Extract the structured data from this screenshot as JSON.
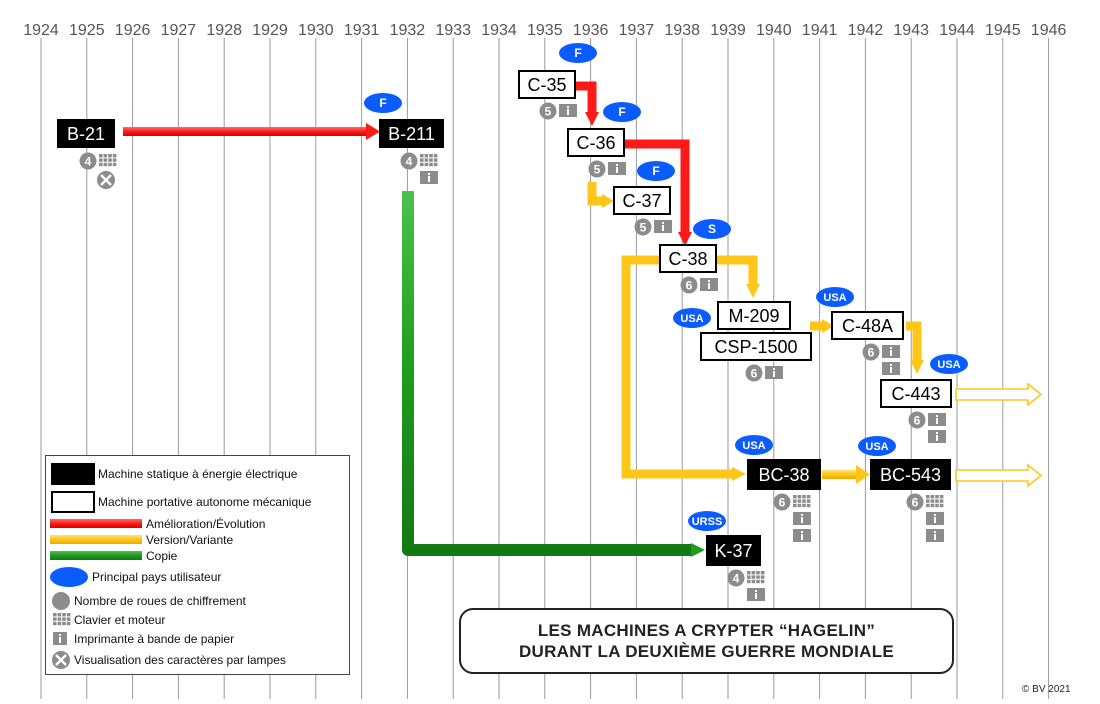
{
  "years": [
    "1924",
    "1925",
    "1926",
    "1927",
    "1928",
    "1929",
    "1930",
    "1931",
    "1932",
    "1933",
    "1934",
    "1935",
    "1936",
    "1937",
    "1938",
    "1939",
    "1940",
    "1941",
    "1942",
    "1943",
    "1944",
    "1945",
    "1946"
  ],
  "machines": [
    {
      "id": "b21",
      "label": "B-21",
      "style": "filled",
      "count": "4",
      "icons": [
        "keyboard",
        "lamp"
      ]
    },
    {
      "id": "b211",
      "label": "B-211",
      "style": "filled",
      "country": "F",
      "count": "4",
      "icons": [
        "keyboard",
        "printer"
      ]
    },
    {
      "id": "c35",
      "label": "C-35",
      "style": "outline",
      "country": "F",
      "count": "5",
      "icons": [
        "printer"
      ]
    },
    {
      "id": "c36",
      "label": "C-36",
      "style": "outline",
      "country": "F",
      "count": "5",
      "icons": [
        "printer"
      ]
    },
    {
      "id": "c37",
      "label": "C-37",
      "style": "outline",
      "country": "F",
      "count": "5",
      "icons": [
        "printer"
      ]
    },
    {
      "id": "c38",
      "label": "C-38",
      "style": "outline",
      "country": "S",
      "count": "6",
      "icons": [
        "printer"
      ]
    },
    {
      "id": "m209",
      "label": "M-209",
      "style": "outline",
      "country": "USA"
    },
    {
      "id": "csp1500",
      "label": "CSP-1500",
      "style": "outline",
      "count": "6",
      "icons": [
        "printer"
      ]
    },
    {
      "id": "c48a",
      "label": "C-48A",
      "style": "outline",
      "country": "USA",
      "count": "6",
      "icons": [
        "printer",
        "printer"
      ]
    },
    {
      "id": "c443",
      "label": "C-443",
      "style": "outline",
      "country": "USA",
      "count": "6",
      "icons": [
        "printer",
        "printer"
      ]
    },
    {
      "id": "bc38",
      "label": "BC-38",
      "style": "filled",
      "country": "USA",
      "count": "6",
      "icons": [
        "keyboard",
        "printer",
        "printer"
      ]
    },
    {
      "id": "bc543",
      "label": "BC-543",
      "style": "filled",
      "country": "USA",
      "count": "6",
      "icons": [
        "keyboard",
        "printer",
        "printer"
      ]
    },
    {
      "id": "k37",
      "label": "K-37",
      "style": "filled",
      "country": "URSS",
      "count": "4",
      "icons": [
        "keyboard",
        "printer"
      ]
    }
  ],
  "legend": {
    "static": "Machine statique à énergie électrique",
    "portable": "Machine portative autonome mécanique",
    "improvement": "Amélioration/Évolution",
    "variant": "Version/Variante",
    "copy": "Copie",
    "country": "Principal pays utilisateur",
    "wheels": "Nombre de roues de chiffrement",
    "keyboard": "Clavier et moteur",
    "printer": "Imprimante à bande de papier",
    "lamps": "Visualisation des caractères par lampes"
  },
  "title": {
    "line1": "LES MACHINES A CRYPTER “HAGELIN”",
    "line2": "DURANT LA DEUXIÈME GUERRE MONDIALE"
  },
  "credit": "© BV  2021",
  "colors": {
    "improvement": "#ff1a1a",
    "variant": "#ffc61a",
    "copy": "#1f9c1f",
    "country": "#0a5cff",
    "badge": "#8c8c8c",
    "grid": "#9a9a9a"
  }
}
